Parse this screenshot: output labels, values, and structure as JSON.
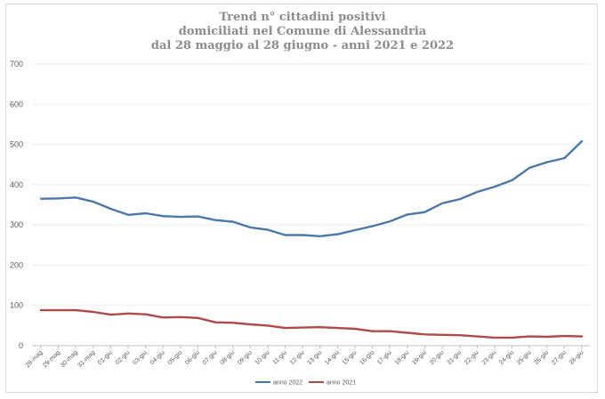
{
  "chart_data": {
    "type": "line",
    "title_lines": [
      "Trend n° cittadini positivi",
      "domiciliati nel Comune di Alessandria",
      "dal 28 maggio al 28 giugno - anni 2021 e 2022"
    ],
    "xlabel": "",
    "ylabel": "",
    "ylim": [
      0,
      700
    ],
    "yticks": [
      0,
      100,
      200,
      300,
      400,
      500,
      600,
      700
    ],
    "grid": true,
    "legend_position": "bottom",
    "categories": [
      "28-mag",
      "29-mag",
      "30-mag",
      "31-mag",
      "01-giu",
      "02-giu",
      "03-giu",
      "04-giu",
      "05-giu",
      "06-giu",
      "07-giu",
      "08-giu",
      "09-giu",
      "10-giu",
      "11-giu",
      "12-giu",
      "13-giu",
      "14-giu",
      "15-giu",
      "16-giu",
      "17-giu",
      "18-giu",
      "19-giu",
      "20-giu",
      "21-giu",
      "22-giu",
      "23-giu",
      "24-giu",
      "25-giu",
      "26-giu",
      "27-giu",
      "28-giu"
    ],
    "series": [
      {
        "name": "anno 2022",
        "color": "#4a78a8",
        "values": [
          365,
          366,
          368,
          358,
          340,
          325,
          329,
          322,
          320,
          321,
          312,
          308,
          294,
          288,
          275,
          275,
          272,
          277,
          287,
          297,
          309,
          326,
          332,
          354,
          364,
          382,
          395,
          411,
          442,
          456,
          466,
          508
        ]
      },
      {
        "name": "anno 2021",
        "color": "#b04a4a",
        "values": [
          88,
          88,
          88,
          84,
          77,
          80,
          78,
          70,
          71,
          69,
          58,
          57,
          53,
          50,
          44,
          45,
          46,
          44,
          42,
          36,
          36,
          32,
          28,
          27,
          26,
          23,
          20,
          20,
          23,
          22,
          24,
          23
        ]
      }
    ]
  }
}
